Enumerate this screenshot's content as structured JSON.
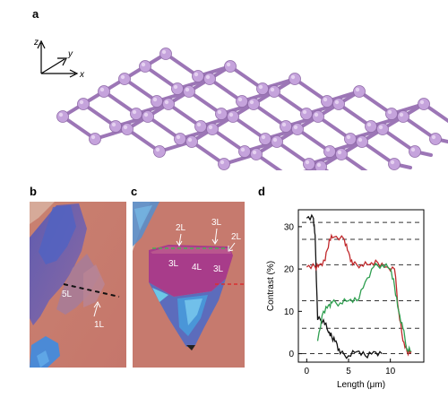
{
  "panels": {
    "a": {
      "label": "a",
      "axes": {
        "z": "z",
        "y": "y",
        "x": "x"
      },
      "atom_color": "#c5a3dc",
      "bond_color": "#9c76b6"
    },
    "b": {
      "label": "b",
      "annotations": {
        "five_layer": "5L",
        "one_layer": "1L"
      }
    },
    "c": {
      "label": "c",
      "annotations": {
        "two_layer": "2L",
        "three_layer_top": "3L",
        "two_layer_right": "2L",
        "three_layer_left": "3L",
        "four_layer": "4L",
        "three_layer_right": "3L"
      }
    },
    "d": {
      "label": "d"
    }
  },
  "chart_data": {
    "type": "line",
    "title": "",
    "xlabel": "Length (μm)",
    "ylabel": "Contrast (%)",
    "xlim": [
      -1,
      14
    ],
    "ylim": [
      -2,
      34
    ],
    "xticks": [
      0,
      5,
      10
    ],
    "yticks": [
      0,
      10,
      20,
      30
    ],
    "reference_levels": [
      0,
      6,
      12.5,
      21,
      27,
      31
    ],
    "series": [
      {
        "color": "#111111",
        "x": [
          0,
          0.8,
          1.0,
          1.3,
          2.0,
          2.6,
          3.0,
          3.5,
          4.0,
          5.0,
          6.0,
          7.0,
          8.0,
          9.0
        ],
        "y": [
          32,
          32,
          28,
          8,
          8,
          5,
          4,
          3,
          0,
          -0.5,
          0.5,
          -0.5,
          0.5,
          0
        ]
      },
      {
        "color": "#c0282b",
        "x": [
          0,
          1.0,
          1.5,
          2.2,
          2.7,
          3.2,
          4.5,
          5.0,
          5.5,
          6.5,
          7.5,
          8.5,
          9.5,
          10.5,
          11.0,
          11.5,
          12.0,
          12.5
        ],
        "y": [
          20.5,
          20.5,
          21,
          22,
          27,
          27.5,
          27,
          24,
          21,
          21,
          21,
          21.5,
          20.5,
          20,
          10,
          3,
          0.5,
          0.5
        ]
      },
      {
        "color": "#2e9e4f",
        "x": [
          1.3,
          2.0,
          2.6,
          3.0,
          4.0,
          5.0,
          6.0,
          7.0,
          8.0,
          9.0,
          10.0,
          10.5,
          11.0,
          11.5,
          12.0,
          12.5
        ],
        "y": [
          3,
          10,
          11.5,
          12,
          12,
          12.5,
          12.5,
          17,
          20.5,
          21,
          20,
          16,
          10,
          6,
          1,
          0.5
        ]
      }
    ]
  }
}
